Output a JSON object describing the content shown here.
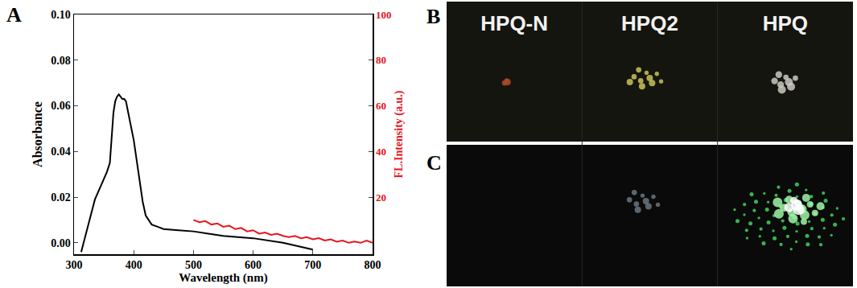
{
  "chart_data": {
    "type": "line",
    "x_label": "Wavelength (nm)",
    "y_label": "Absorbance",
    "y2_label": "FL.Intensity (a.u.)",
    "xlim": [
      300,
      800
    ],
    "xticks": [
      300,
      400,
      500,
      600,
      700,
      800
    ],
    "ylim": [
      -0.005,
      0.1
    ],
    "yticks": [
      {
        "value": 0,
        "label": "0.00"
      },
      {
        "value": 0.02,
        "label": "0.02"
      },
      {
        "value": 0.04,
        "label": "0.04"
      },
      {
        "value": 0.06,
        "label": "0.06"
      },
      {
        "value": 0.08,
        "label": "0.08"
      },
      {
        "value": 0.1,
        "label": "0.10"
      }
    ],
    "y2lim": [
      -5,
      100
    ],
    "y2ticks": [
      20,
      40,
      60,
      80,
      100
    ],
    "grid": false,
    "series": [
      {
        "color": "#000000",
        "x": [
          312,
          316,
          320,
          325,
          330,
          335,
          340,
          345,
          350,
          355,
          360,
          363,
          366,
          369,
          372,
          375,
          378,
          381,
          384,
          387,
          390,
          395,
          400,
          405,
          410,
          415,
          420,
          430,
          440,
          450,
          475,
          500,
          550,
          600,
          650,
          700
        ],
        "values": [
          -0.004,
          0.0,
          0.005,
          0.01,
          0.015,
          0.019,
          0.022,
          0.025,
          0.028,
          0.031,
          0.035,
          0.045,
          0.057,
          0.062,
          0.064,
          0.065,
          0.064,
          0.063,
          0.063,
          0.062,
          0.058,
          0.052,
          0.045,
          0.036,
          0.026,
          0.018,
          0.012,
          0.008,
          0.007,
          0.006,
          0.0055,
          0.005,
          0.003,
          0.002,
          0.0,
          -0.003
        ]
      },
      {
        "color": "#e8141e",
        "axis": "y2",
        "x": [
          500,
          510,
          520,
          530,
          540,
          550,
          560,
          570,
          580,
          590,
          600,
          610,
          620,
          630,
          640,
          650,
          660,
          670,
          680,
          690,
          700,
          710,
          720,
          730,
          740,
          750,
          760,
          770,
          780,
          790,
          800
        ],
        "values": [
          10,
          9,
          9.5,
          8,
          8.5,
          7,
          7.5,
          6,
          6.5,
          5,
          5.5,
          4,
          4.5,
          3.5,
          4,
          3,
          2.5,
          3,
          2,
          2.5,
          1.5,
          2,
          1,
          1.5,
          0.5,
          1,
          0,
          0.5,
          0,
          1,
          0
        ]
      }
    ]
  },
  "panel_labels": [
    "A",
    "B",
    "C"
  ],
  "photo_labels": [
    "HPQ-N",
    "HPQ2",
    "HPQ"
  ]
}
